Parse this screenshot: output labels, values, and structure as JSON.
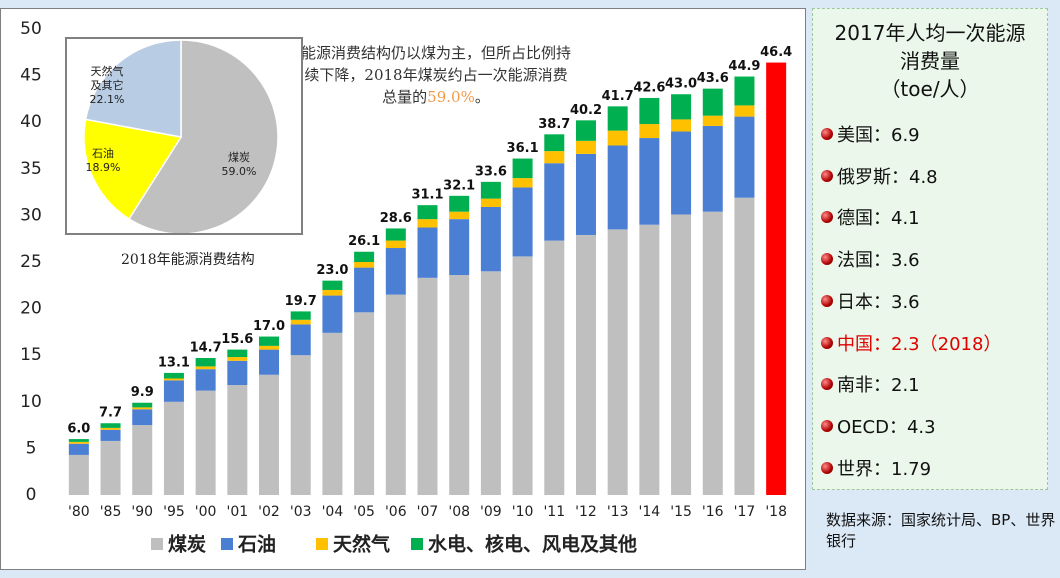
{
  "chart_data": [
    {
      "type": "stacked-bar",
      "categories": [
        "'80",
        "'85",
        "'90",
        "'95",
        "'00",
        "'01",
        "'02",
        "'03",
        "'04",
        "'05",
        "'06",
        "'07",
        "'08",
        "'09",
        "'10",
        "'11",
        "'12",
        "'13",
        "'14",
        "'15",
        "'16",
        "'17",
        "'18"
      ],
      "series": [
        {
          "name": "煤炭",
          "color": "#bfbfbf",
          "values": [
            4.3,
            5.8,
            7.5,
            10.0,
            11.2,
            11.8,
            12.9,
            15.0,
            17.4,
            19.6,
            21.5,
            23.3,
            23.6,
            24.0,
            25.6,
            27.3,
            27.9,
            28.5,
            29.0,
            30.1,
            30.4,
            31.9,
            null
          ]
        },
        {
          "name": "石油",
          "color": "#4a7fd4",
          "values": [
            1.2,
            1.2,
            1.7,
            2.3,
            2.3,
            2.6,
            2.7,
            3.3,
            4.0,
            4.8,
            5.0,
            5.4,
            6.0,
            6.9,
            7.4,
            8.3,
            8.7,
            9.0,
            9.3,
            8.9,
            9.2,
            8.7,
            null
          ]
        },
        {
          "name": "天然气",
          "color": "#ffc000",
          "values": [
            0.2,
            0.2,
            0.2,
            0.2,
            0.3,
            0.4,
            0.4,
            0.5,
            0.6,
            0.6,
            0.8,
            0.9,
            0.8,
            0.9,
            1.0,
            1.3,
            1.4,
            1.6,
            1.5,
            1.3,
            1.1,
            1.2,
            null
          ]
        },
        {
          "name": "水电、核电、风电及其他",
          "color": "#00b050",
          "values": [
            0.3,
            0.5,
            0.5,
            0.6,
            0.9,
            0.8,
            1.0,
            0.9,
            1.0,
            1.1,
            1.3,
            1.5,
            1.7,
            1.8,
            2.1,
            1.8,
            2.2,
            2.6,
            2.8,
            2.7,
            2.9,
            3.1,
            null
          ]
        }
      ],
      "totals": {
        "color": "#ff0000",
        "values": [
          6.0,
          7.7,
          9.9,
          13.1,
          14.7,
          15.6,
          17.0,
          19.7,
          23.0,
          26.1,
          28.6,
          31.1,
          32.1,
          33.6,
          36.1,
          38.7,
          40.2,
          41.7,
          42.6,
          43.0,
          43.6,
          44.9,
          46.4
        ],
        "value_labels": [
          "6.0",
          "7.7",
          "9.9",
          "13.1",
          "14.7",
          "15.6",
          "17.0",
          "19.7",
          "23.0",
          "26.1",
          "28.6",
          "31.1",
          "32.1",
          "33.6",
          "36.1",
          "38.7",
          "40.2",
          "41.7",
          "42.6",
          "43.0",
          "43.6",
          "44.9",
          "46.4"
        ]
      },
      "ylim": [
        0,
        50
      ],
      "yticks": [
        0,
        5,
        10,
        15,
        20,
        25,
        30,
        35,
        40,
        45,
        50
      ],
      "grid": false,
      "legend": "bottom",
      "annotation": {
        "text": "能源消费结构仍以煤为主，但所占比例持续下降，2018年煤炭约占一次能源消费总量的",
        "highlight": "59.0%",
        "end": "。"
      }
    },
    {
      "type": "pie",
      "title": "2018年能源消费结构",
      "categories": [
        "煤炭",
        "石油",
        "天然气及其它"
      ],
      "values": [
        59.0,
        18.9,
        22.1
      ],
      "value_labels": [
        "59.0%",
        "18.9%",
        "22.1%"
      ],
      "colors": [
        "#c0c0c0",
        "#ffff00",
        "#b8cce4"
      ]
    }
  ],
  "panel": {
    "title": "2017年人均一次能源消费量",
    "unit": "（toe/人）",
    "items": [
      {
        "text": "美国：6.9"
      },
      {
        "text": "俄罗斯：4.8"
      },
      {
        "text": "德国：4.1"
      },
      {
        "text": "法国：3.6"
      },
      {
        "text": "日本：3.6"
      },
      {
        "text": "中国：2.3（2018）",
        "color": "#e00000"
      },
      {
        "text": "南非：2.1"
      },
      {
        "text": "OECD：4.3"
      },
      {
        "text": "世界：1.79"
      }
    ]
  },
  "source": "数据来源：国家统计局、BP、世界银行"
}
